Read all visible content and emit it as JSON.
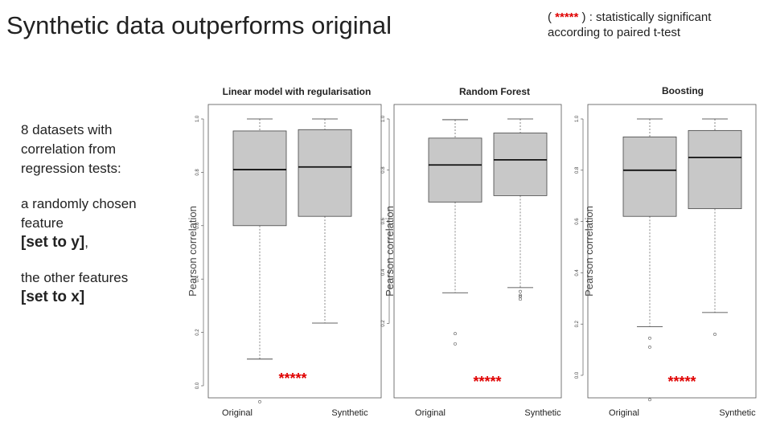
{
  "slide": {
    "title": "Synthetic data outperforms original",
    "note": {
      "prefix": "( ",
      "stars": "*****",
      "suffix": " ) : statistically significant",
      "line2": "according to paired t-test"
    },
    "side": {
      "p1": "8 datasets with correlation from regression tests:",
      "p2_text": "a randomly chosen feature",
      "p2_bold": "[set to y]",
      "p2_tail": ",",
      "p3_text": "the other features",
      "p3_bold": "[set to x]"
    }
  },
  "colors": {
    "box_fill": "#c8c8c8",
    "significance": "#e00000"
  },
  "chart_data": [
    {
      "type": "box",
      "title": "Linear model with regularisation",
      "ylabel": "Pearson correlation",
      "categories": [
        "Original",
        "Synthetic"
      ],
      "ylim": [
        -0.05,
        1.03
      ],
      "yticks": [
        "0.0",
        "0.2",
        "0.4",
        "0.6",
        "0.8",
        "1.0"
      ],
      "boxes": [
        {
          "name": "Original",
          "whisker_low": 0.1,
          "q1": 0.6,
          "median": 0.81,
          "q3": 0.955,
          "whisker_high": 1.0,
          "outliers": [
            -0.06
          ]
        },
        {
          "name": "Synthetic",
          "whisker_low": 0.235,
          "q1": 0.635,
          "median": 0.82,
          "q3": 0.96,
          "whisker_high": 1.0,
          "outliers": []
        }
      ],
      "annotation": "*****"
    },
    {
      "type": "box",
      "title": "Random Forest",
      "ylabel": "Pearson correlation",
      "categories": [
        "Original",
        "Synthetic"
      ],
      "ylim": [
        0.14,
        1.02
      ],
      "yticks": [
        "0.2",
        "0.4",
        "0.6",
        "0.8",
        "1.0"
      ],
      "boxes": [
        {
          "name": "Original",
          "whisker_low": 0.32,
          "q1": 0.675,
          "median": 0.82,
          "q3": 0.925,
          "whisker_high": 0.997,
          "outliers": [
            0.16,
            0.12
          ]
        },
        {
          "name": "Synthetic",
          "whisker_low": 0.34,
          "q1": 0.7,
          "median": 0.84,
          "q3": 0.945,
          "whisker_high": 1.0,
          "outliers": [
            0.325,
            0.31,
            0.305,
            0.295
          ]
        }
      ],
      "annotation": "*****"
    },
    {
      "type": "box",
      "title": "Boosting",
      "ylabel": "Pearson correlation",
      "categories": [
        "Original",
        "Synthetic"
      ],
      "ylim": [
        -0.1,
        1.02
      ],
      "yticks": [
        "0.0",
        "0.2",
        "0.4",
        "0.6",
        "0.8",
        "1.0"
      ],
      "boxes": [
        {
          "name": "Original",
          "whisker_low": 0.19,
          "q1": 0.62,
          "median": 0.8,
          "q3": 0.93,
          "whisker_high": 1.0,
          "outliers": [
            0.145,
            0.11,
            -0.095
          ]
        },
        {
          "name": "Synthetic",
          "whisker_low": 0.245,
          "q1": 0.65,
          "median": 0.85,
          "q3": 0.955,
          "whisker_high": 1.0,
          "outliers": [
            0.16
          ]
        }
      ],
      "annotation": "*****"
    }
  ]
}
